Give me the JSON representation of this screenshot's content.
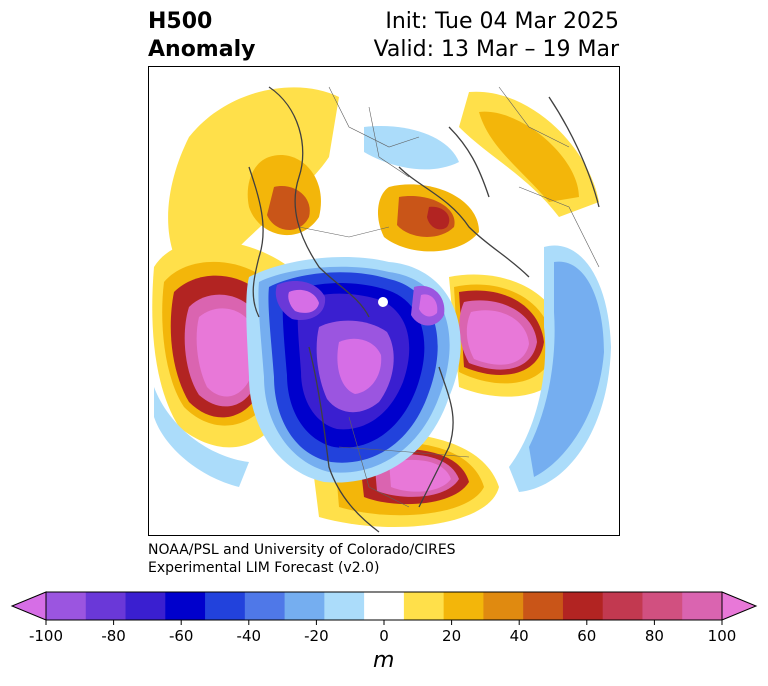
{
  "header": {
    "variable": "H500",
    "subtitle": "Anomaly",
    "init": "Init: Tue 04 Mar 2025",
    "valid": "Valid: 13 Mar – 19 Mar"
  },
  "credit": {
    "line1": "NOAA/PSL and University of Colorado/CIRES",
    "line2": "Experimental LIM Forecast (v2.0)"
  },
  "colorbar": {
    "unit": "m",
    "ticks": [
      "-100",
      "-80",
      "-60",
      "-40",
      "-20",
      "0",
      "20",
      "40",
      "60",
      "80",
      "100"
    ],
    "colors": [
      "#d66ee6",
      "#9b55e0",
      "#6a38d8",
      "#3a1fd0",
      "#0000cc",
      "#2242dc",
      "#4f78e8",
      "#75aef0",
      "#abdcfa",
      "#ffffff",
      "#ffe04a",
      "#f3b60a",
      "#e08a10",
      "#c95518",
      "#b22422",
      "#c23950",
      "#d15080",
      "#da64b0",
      "#e878d8"
    ]
  }
}
